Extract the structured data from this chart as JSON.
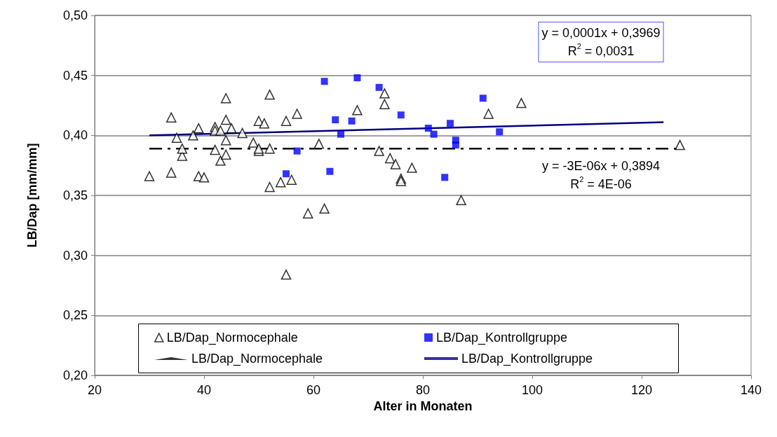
{
  "chart_data": {
    "type": "scatter",
    "xlabel": "Alter in Monaten",
    "ylabel": "LB/Dap [mm/mm]",
    "xlim": [
      20,
      140
    ],
    "xticks": [
      20,
      40,
      60,
      80,
      100,
      120,
      140
    ],
    "ylim": [
      0.2,
      0.5
    ],
    "yticks": [
      {
        "value": 0.2,
        "label": "0,20"
      },
      {
        "value": 0.25,
        "label": "0,25"
      },
      {
        "value": 0.3,
        "label": "0,30"
      },
      {
        "value": 0.35,
        "label": "0,35"
      },
      {
        "value": 0.4,
        "label": "0,40"
      },
      {
        "value": 0.45,
        "label": "0,45"
      },
      {
        "value": 0.5,
        "label": "0,50"
      }
    ],
    "grid": "y",
    "legend": "bottom",
    "series": [
      {
        "name": "LB/Dap_Normocephale",
        "type": "scatter",
        "marker": "triangle",
        "color": "#000000",
        "x": [
          30,
          34,
          34,
          35,
          36,
          36,
          38,
          39,
          39,
          40,
          42,
          42,
          42,
          43,
          43,
          44,
          44,
          44,
          44,
          45,
          47,
          49,
          50,
          50,
          50,
          51,
          52,
          52,
          52,
          54,
          55,
          55,
          56,
          57,
          59,
          61,
          62,
          68,
          72,
          73,
          73,
          74,
          75,
          76,
          76,
          78,
          87,
          92,
          98,
          127
        ],
        "values": [
          0.366,
          0.369,
          0.415,
          0.398,
          0.383,
          0.389,
          0.4,
          0.406,
          0.366,
          0.365,
          0.407,
          0.404,
          0.388,
          0.379,
          0.404,
          0.431,
          0.413,
          0.396,
          0.384,
          0.406,
          0.402,
          0.394,
          0.412,
          0.387,
          0.389,
          0.41,
          0.434,
          0.389,
          0.357,
          0.361,
          0.412,
          0.284,
          0.363,
          0.418,
          0.335,
          0.393,
          0.339,
          0.421,
          0.387,
          0.435,
          0.426,
          0.381,
          0.376,
          0.364,
          0.362,
          0.373,
          0.346,
          0.418,
          0.427,
          0.392
        ]
      },
      {
        "name": "LB/Dap_Kontrollgruppe",
        "type": "scatter",
        "marker": "square",
        "color": "#0000ff",
        "x": [
          55,
          57,
          62,
          63,
          64,
          65,
          67,
          68,
          72,
          76,
          81,
          82,
          84,
          85,
          86,
          86,
          91,
          94
        ],
        "values": [
          0.368,
          0.387,
          0.445,
          0.37,
          0.413,
          0.401,
          0.412,
          0.448,
          0.44,
          0.417,
          0.406,
          0.401,
          0.365,
          0.41,
          0.396,
          0.392,
          0.431,
          0.403
        ]
      },
      {
        "name": "LB/Dap_Normocephale",
        "type": "line",
        "line_style": "dashed",
        "marker": "none",
        "color": "#000000",
        "x": [
          30,
          127
        ],
        "values": [
          0.389,
          0.389
        ]
      },
      {
        "name": "LB/Dap_Kontrollgruppe",
        "type": "line",
        "line_style": "solid",
        "marker": "none",
        "color": "#000080",
        "x": [
          30,
          124
        ],
        "values": [
          0.4,
          0.411
        ]
      }
    ],
    "annotations": [
      "y = 0,0001x + 0,3969\nR$^{2}$ = 0,0031",
      "y = -3E-06x + 0,3894\nR$^{2}$ = 4E-06"
    ]
  }
}
